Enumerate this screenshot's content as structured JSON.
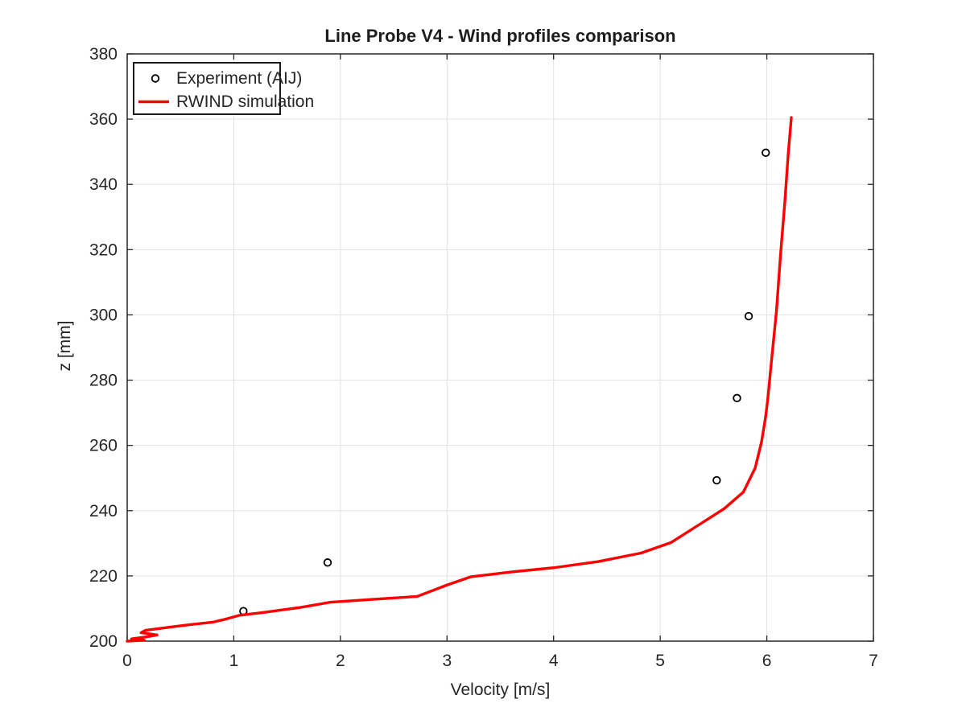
{
  "chart_data": {
    "type": "line",
    "title": "Line Probe V4 - Wind profiles comparison",
    "xlabel": "Velocity [m/s]",
    "ylabel": "z [mm]",
    "xlim": [
      0,
      7
    ],
    "ylim": [
      200,
      380
    ],
    "xticks": [
      0,
      1,
      2,
      3,
      4,
      5,
      6,
      7
    ],
    "yticks": [
      200,
      220,
      240,
      260,
      280,
      300,
      320,
      340,
      360,
      380
    ],
    "grid": true,
    "legend_position": "top-left",
    "colors": {
      "grid": "#e3e3e3",
      "axis": "#262626",
      "text": "#262626",
      "background": "#ffffff"
    },
    "series": [
      {
        "name": "Experiment (AIJ)",
        "type": "scatter",
        "marker": "open-circle",
        "color": "#000000",
        "points": [
          [
            1.09,
            209.2
          ],
          [
            1.88,
            224.1
          ],
          [
            5.53,
            249.3
          ],
          [
            5.72,
            274.5
          ],
          [
            5.83,
            299.6
          ],
          [
            5.99,
            349.7
          ]
        ]
      },
      {
        "name": "RWIND simulation",
        "type": "line",
        "color": "#ff0000",
        "line_width": 3.4,
        "points": [
          [
            0.0,
            200.0
          ],
          [
            0.16,
            200.3
          ],
          [
            0.04,
            200.7
          ],
          [
            0.18,
            201.3
          ],
          [
            0.28,
            201.9
          ],
          [
            0.13,
            202.6
          ],
          [
            0.17,
            203.3
          ],
          [
            0.38,
            204.2
          ],
          [
            0.6,
            205.1
          ],
          [
            0.8,
            205.8
          ],
          [
            0.93,
            206.8
          ],
          [
            1.05,
            207.9
          ],
          [
            1.28,
            208.8
          ],
          [
            1.62,
            210.3
          ],
          [
            1.9,
            211.9
          ],
          [
            2.3,
            212.8
          ],
          [
            2.72,
            213.7
          ],
          [
            3.0,
            217.2
          ],
          [
            3.22,
            219.7
          ],
          [
            3.6,
            221.2
          ],
          [
            4.0,
            222.5
          ],
          [
            4.42,
            224.4
          ],
          [
            4.82,
            227.0
          ],
          [
            5.1,
            230.2
          ],
          [
            5.36,
            235.6
          ],
          [
            5.6,
            240.6
          ],
          [
            5.78,
            245.7
          ],
          [
            5.89,
            253.0
          ],
          [
            5.95,
            261.0
          ],
          [
            5.99,
            269.0
          ],
          [
            6.01,
            274.6
          ],
          [
            6.05,
            288.0
          ],
          [
            6.09,
            301.0
          ],
          [
            6.13,
            319.0
          ],
          [
            6.17,
            335.0
          ],
          [
            6.2,
            349.0
          ],
          [
            6.23,
            360.5
          ]
        ]
      }
    ]
  }
}
